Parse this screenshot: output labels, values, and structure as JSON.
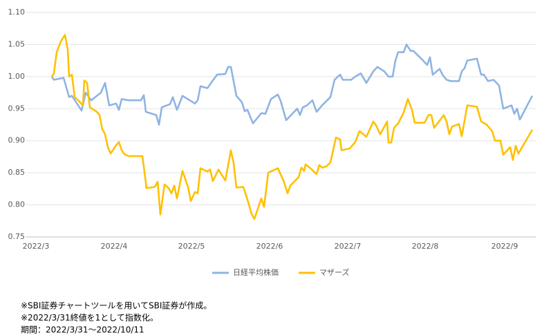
{
  "chart_data": {
    "type": "line",
    "series": [
      {
        "name": "日経平均株価",
        "color": "#8eb4e3",
        "x": [
          0,
          0.6,
          3.4,
          5,
          5.8,
          8.6,
          9.8,
          11.4,
          14.2,
          15.4,
          16.6,
          18.6,
          19.4,
          20.2,
          22.2,
          25.8,
          26.6,
          27.2,
          30.2,
          31,
          31.8,
          34.2,
          35,
          36.2,
          37.8,
          41.4,
          42.2,
          43,
          45,
          45.8,
          47.8,
          50.2,
          51,
          51.8,
          53.4,
          55,
          55.8,
          56.6,
          58.2,
          59.4,
          60.6,
          61.8,
          63.4,
          65.4,
          66.2,
          67.8,
          71,
          71.8,
          72.6,
          73.8,
          75.4,
          76.6,
          78.2,
          80.6,
          81.8,
          83.4,
          84.2,
          86.6,
          87.8,
          89.4,
          91,
          93,
          94.2,
          96.2,
          97.4,
          98.6,
          99.4,
          100.2,
          101.8,
          102.6,
          103.8,
          104.6,
          107.4,
          108.6,
          109.4,
          110.2,
          112.2,
          113,
          114.2,
          115.4,
          117.8,
          118.6,
          119.4,
          120.2,
          123,
          124.2,
          125,
          126.2,
          127.8,
          129.4,
          130.6,
          133,
          133.8,
          134.6,
          135.4,
          139
        ],
        "values": [
          1.0,
          0.995,
          0.998,
          0.968,
          0.97,
          0.947,
          0.975,
          0.963,
          0.975,
          0.99,
          0.955,
          0.958,
          0.948,
          0.965,
          0.963,
          0.963,
          0.971,
          0.945,
          0.94,
          0.925,
          0.952,
          0.957,
          0.968,
          0.948,
          0.97,
          0.958,
          0.963,
          0.985,
          0.982,
          0.988,
          1.003,
          1.004,
          1.015,
          1.015,
          0.97,
          0.96,
          0.946,
          0.948,
          0.927,
          0.935,
          0.943,
          0.942,
          0.965,
          0.972,
          0.962,
          0.932,
          0.95,
          0.94,
          0.952,
          0.955,
          0.963,
          0.945,
          0.955,
          0.968,
          0.995,
          1.003,
          0.995,
          0.995,
          1.0,
          1.005,
          0.99,
          1.008,
          1.015,
          1.008,
          1.0,
          1.0,
          1.025,
          1.038,
          1.038,
          1.05,
          1.04,
          1.04,
          1.025,
          1.018,
          1.03,
          1.003,
          1.012,
          1.003,
          0.995,
          0.993,
          0.993,
          1.008,
          1.013,
          1.025,
          1.028,
          1.003,
          1.003,
          0.993,
          0.995,
          0.986,
          0.95,
          0.955,
          0.942,
          0.95,
          0.933,
          0.97
        ]
      },
      {
        "name": "マザーズ",
        "color": "#ffc000",
        "x": [
          0,
          0.6,
          1.4,
          2.6,
          3.8,
          4.6,
          5,
          5.8,
          6.6,
          7.8,
          9,
          9.4,
          10.2,
          11,
          13,
          13.8,
          14.6,
          15.4,
          16.2,
          17,
          18.6,
          19.4,
          20.2,
          21,
          22.2,
          26.2,
          27.4,
          29.8,
          30.6,
          31.4,
          32.6,
          33.8,
          34.6,
          35.4,
          36.2,
          37.8,
          39.4,
          40.2,
          41.4,
          42.2,
          43,
          45,
          45.8,
          46.6,
          48.2,
          50.2,
          51.8,
          52.6,
          53.4,
          55.4,
          56.6,
          57.8,
          58.6,
          60.6,
          61.4,
          62.6,
          65.4,
          67,
          68.2,
          69,
          71.4,
          72.2,
          73,
          73.4,
          74.6,
          76.6,
          77.4,
          78.2,
          79.4,
          80.6,
          82.2,
          83.4,
          83.8,
          86.2,
          87.8,
          89,
          91,
          93,
          93.8,
          95,
          97,
          97.4,
          98.2,
          99,
          100.2,
          101.8,
          103,
          104.2,
          105,
          107.8,
          109,
          109.8,
          110.6,
          113.4,
          114.2,
          115,
          115.8,
          117.8,
          118.6,
          120.2,
          123,
          124.2,
          125.8,
          127.4,
          128.2,
          129.8,
          130.6,
          132.6,
          133.4,
          134.2,
          135,
          139
        ],
        "values": [
          1.0,
          1.005,
          1.038,
          1.055,
          1.065,
          1.042,
          1.0,
          1.003,
          0.968,
          0.962,
          0.955,
          0.994,
          0.99,
          0.952,
          0.945,
          0.94,
          0.918,
          0.91,
          0.89,
          0.88,
          0.893,
          0.898,
          0.885,
          0.879,
          0.876,
          0.876,
          0.826,
          0.828,
          0.836,
          0.785,
          0.832,
          0.826,
          0.818,
          0.83,
          0.81,
          0.853,
          0.828,
          0.806,
          0.82,
          0.818,
          0.857,
          0.852,
          0.855,
          0.837,
          0.855,
          0.838,
          0.885,
          0.865,
          0.827,
          0.828,
          0.808,
          0.786,
          0.778,
          0.81,
          0.797,
          0.85,
          0.857,
          0.838,
          0.818,
          0.83,
          0.843,
          0.858,
          0.853,
          0.863,
          0.858,
          0.848,
          0.862,
          0.858,
          0.86,
          0.866,
          0.905,
          0.902,
          0.885,
          0.888,
          0.898,
          0.915,
          0.906,
          0.93,
          0.924,
          0.91,
          0.93,
          0.897,
          0.897,
          0.92,
          0.927,
          0.944,
          0.965,
          0.948,
          0.928,
          0.928,
          0.94,
          0.94,
          0.92,
          0.94,
          0.93,
          0.91,
          0.922,
          0.926,
          0.907,
          0.955,
          0.953,
          0.93,
          0.925,
          0.915,
          0.9,
          0.9,
          0.878,
          0.89,
          0.87,
          0.892,
          0.88,
          0.917
        ]
      }
    ],
    "xlim": [
      -7.4,
      140
    ],
    "xticks": [
      {
        "value": -4.6,
        "label": "2022/3"
      },
      {
        "value": 18,
        "label": "2022/4"
      },
      {
        "value": 40.4,
        "label": "2022/5"
      },
      {
        "value": 63,
        "label": "2022/6"
      },
      {
        "value": 85.6,
        "label": "2022/7"
      },
      {
        "value": 108,
        "label": "2022/8"
      },
      {
        "value": 131,
        "label": "2022/9"
      }
    ],
    "ylim": [
      0.75,
      1.1
    ],
    "yticks": [
      {
        "value": 0.75,
        "label": "0.75"
      },
      {
        "value": 0.8,
        "label": "0.80"
      },
      0.85,
      {
        "value": 0.9,
        "label": "0.90"
      },
      0.95,
      {
        "value": 1.0,
        "label": "1.00"
      },
      1.05,
      {
        "value": 1.1,
        "label": "1.10"
      }
    ],
    "grid": true,
    "legend": "bottom",
    "notes": [
      "※SBI証券チャートツールを用いてSBI証券が作成。",
      "※2022/3/31終値を1として指数化。",
      "期間：2022/3/31～2022/10/11"
    ]
  }
}
